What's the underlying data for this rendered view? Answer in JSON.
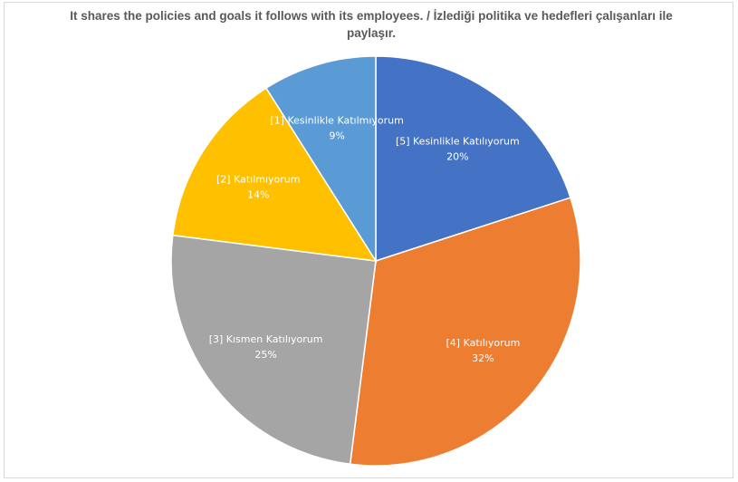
{
  "chart_data": {
    "type": "pie",
    "title": "It shares the policies and goals it follows with its employees. / İzlediği politika ve hedefleri çalışanları ile paylaşır.",
    "slices": [
      {
        "label": "[5] Kesinlikle Katılıyorum",
        "value": 20,
        "percent_label": "20%",
        "color": "#4472c4"
      },
      {
        "label": "[4] Katılıyorum",
        "value": 32,
        "percent_label": "32%",
        "color": "#ed7d31"
      },
      {
        "label": "[3] Kısmen Katılıyorum",
        "value": 25,
        "percent_label": "25%",
        "color": "#a5a5a5"
      },
      {
        "label": "[2] Katılmıyorum",
        "value": 14,
        "percent_label": "14%",
        "color": "#ffc000"
      },
      {
        "label": "[1] Kesinlikle Katılmıyorum",
        "value": 9,
        "percent_label": "9%",
        "color": "#5b9bd5"
      }
    ]
  }
}
